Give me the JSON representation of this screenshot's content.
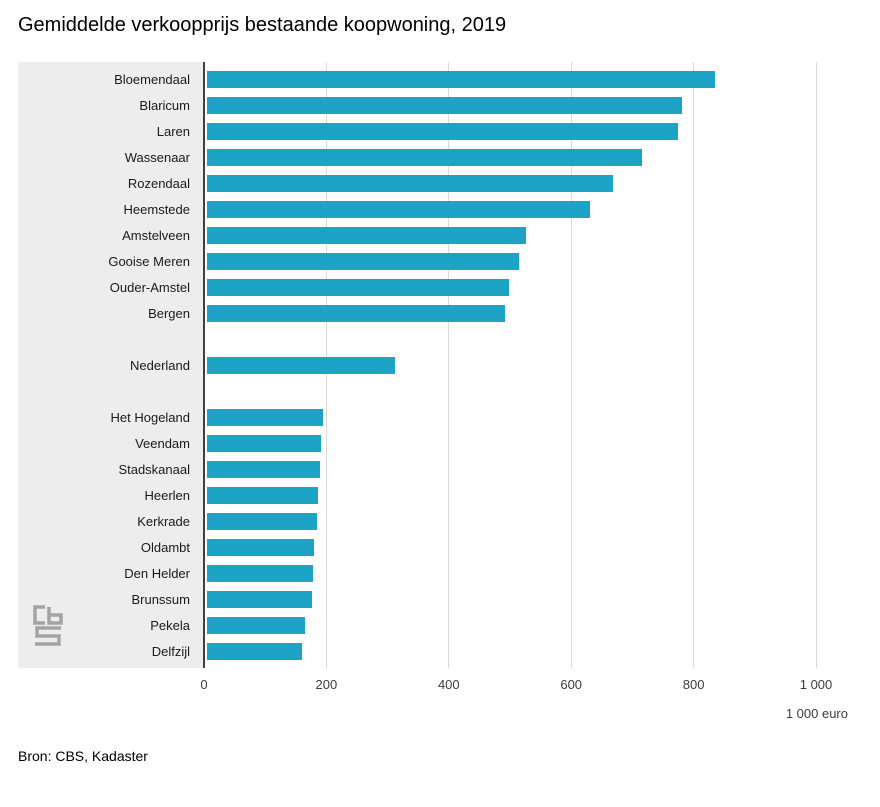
{
  "page": {
    "source": "Bron: CBS, Kadaster"
  },
  "chart_data": {
    "type": "bar",
    "orientation": "horizontal",
    "title": "Gemiddelde verkoopprijs bestaande koopwoning, 2019",
    "unit_label": "1 000 euro",
    "xlim": [
      0,
      1000
    ],
    "grid": true,
    "bar_color": "#1ca3c6",
    "x_ticks": [
      {
        "value": 0,
        "label": "0"
      },
      {
        "value": 200,
        "label": "200"
      },
      {
        "value": 400,
        "label": "400"
      },
      {
        "value": 600,
        "label": "600"
      },
      {
        "value": 800,
        "label": "800"
      },
      {
        "value": 1000,
        "label": "1 000"
      }
    ],
    "groups": [
      {
        "items": [
          {
            "label": "Bloemendaal",
            "value": 830
          },
          {
            "label": "Blaricum",
            "value": 776
          },
          {
            "label": "Laren",
            "value": 769
          },
          {
            "label": "Wassenaar",
            "value": 710
          },
          {
            "label": "Rozendaal",
            "value": 664
          },
          {
            "label": "Heemstede",
            "value": 626
          },
          {
            "label": "Amstelveen",
            "value": 521
          },
          {
            "label": "Gooise Meren",
            "value": 509
          },
          {
            "label": "Ouder-Amstel",
            "value": 494
          },
          {
            "label": "Bergen",
            "value": 487
          }
        ]
      },
      {
        "items": [
          {
            "label": "Nederland",
            "value": 308
          }
        ]
      },
      {
        "items": [
          {
            "label": "Het Hogeland",
            "value": 190
          },
          {
            "label": "Veendam",
            "value": 187
          },
          {
            "label": "Stadskanaal",
            "value": 184
          },
          {
            "label": "Heerlen",
            "value": 181
          },
          {
            "label": "Kerkrade",
            "value": 180
          },
          {
            "label": "Oldambt",
            "value": 175
          },
          {
            "label": "Den Helder",
            "value": 174
          },
          {
            "label": "Brunssum",
            "value": 172
          },
          {
            "label": "Pekela",
            "value": 160
          },
          {
            "label": "Delfzijl",
            "value": 155
          }
        ]
      }
    ]
  }
}
